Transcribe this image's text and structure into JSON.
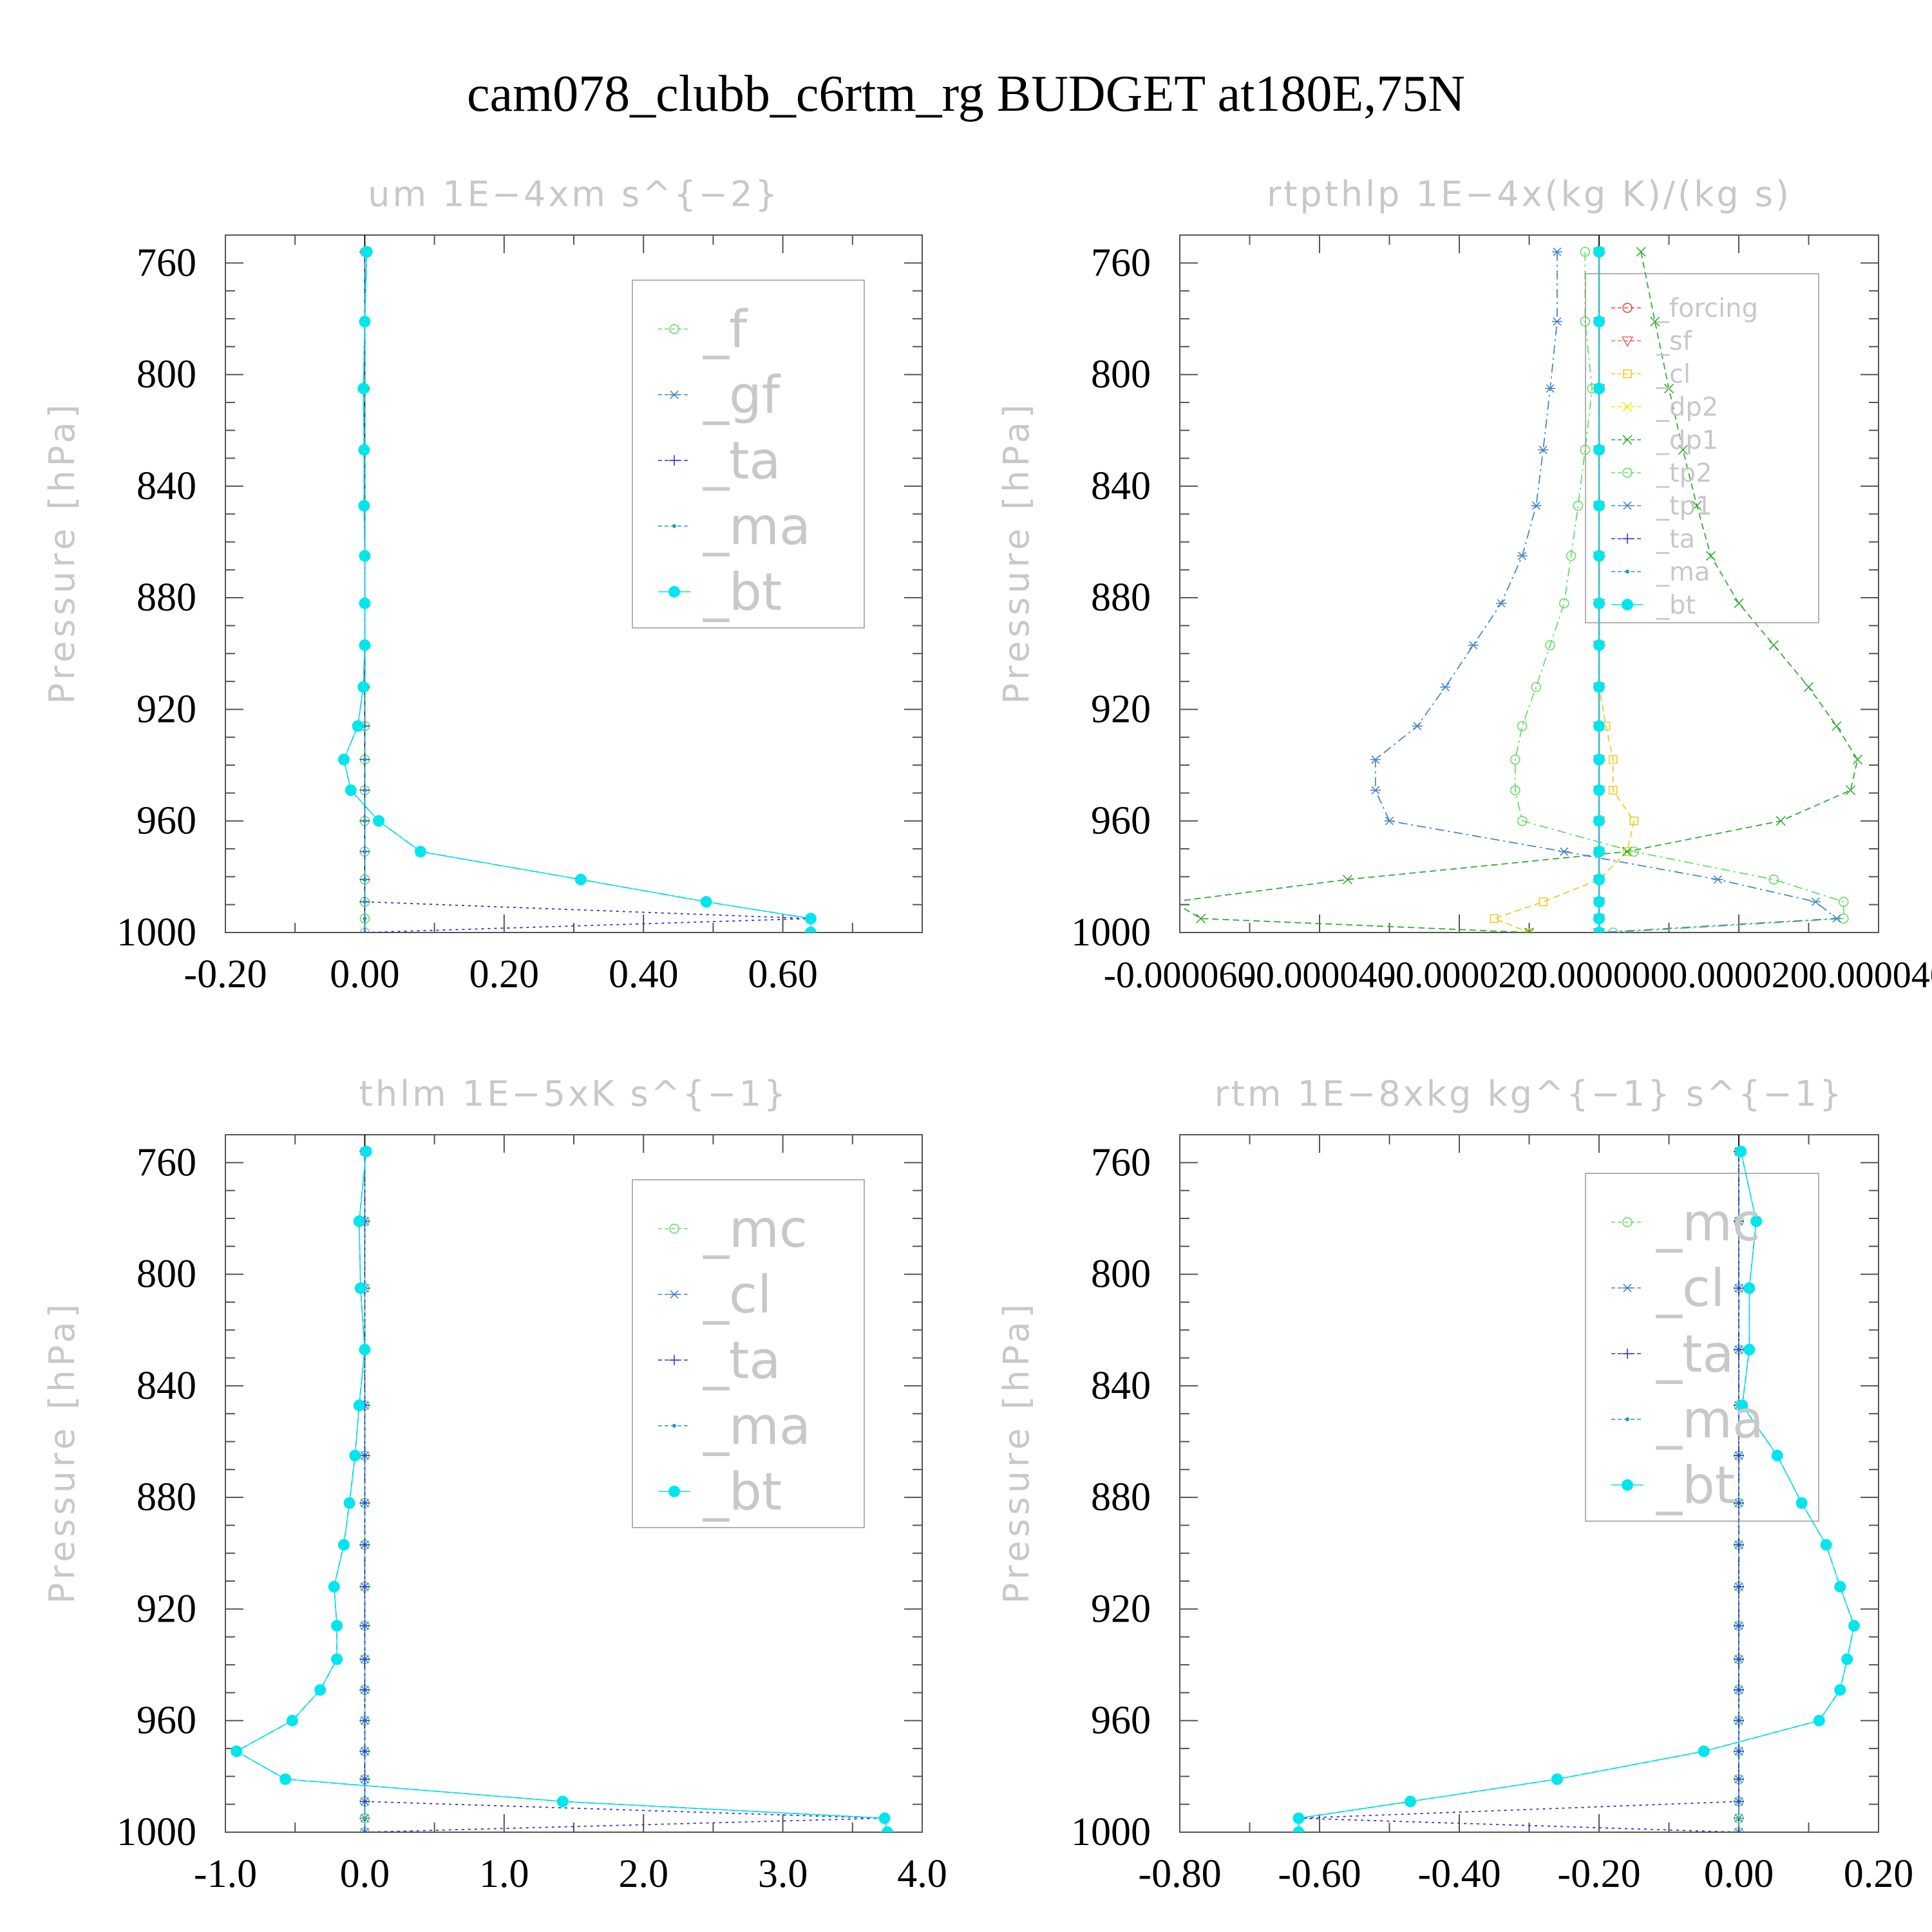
{
  "title": "cam078_clubb_c6rtm_rg  BUDGET at180E,75N",
  "chart_data": [
    {
      "type": "line",
      "title": "um   1E−4xm s^{−2}",
      "ylabel": "Pressure [hPa]",
      "ylim": [
        1000,
        750
      ],
      "xlim": [
        -0.2,
        0.8
      ],
      "yticks": [
        760,
        800,
        840,
        880,
        920,
        960,
        1000
      ],
      "xticks": [
        -0.2,
        0.0,
        0.2,
        0.4,
        0.6
      ],
      "xticklabels": [
        "-0.20",
        "0.00",
        "0.20",
        "0.40",
        "0.60"
      ],
      "pressure": [
        756,
        781,
        805,
        827,
        847,
        865,
        882,
        897,
        912,
        926,
        938,
        949,
        960,
        971,
        981,
        989,
        995,
        1000
      ],
      "legend_font": 80,
      "series": [
        {
          "name": "_f",
          "color": "#66dd66",
          "marker": "circle",
          "dash": "10,6",
          "values": [
            0,
            0,
            0,
            0,
            0,
            0,
            0,
            0,
            0,
            0,
            0,
            0,
            0,
            0,
            0,
            0,
            0,
            0
          ]
        },
        {
          "name": "_gf",
          "color": "#4488cc",
          "marker": "star",
          "dash": "14,6,3,6",
          "values": [
            0.003,
            0.0,
            -0.002,
            -0.001,
            -0.001,
            0.0,
            0.0,
            0.0,
            -0.002,
            -0.01,
            -0.03,
            -0.02,
            0.02,
            0.08,
            0.31,
            0.49,
            0.64,
            0.64
          ]
        },
        {
          "name": "_ta",
          "color": "#3333dd",
          "marker": "plus",
          "dash": "4,6",
          "values": [
            0,
            0,
            0,
            0,
            0,
            0,
            0,
            0,
            0,
            0,
            0,
            0,
            0,
            0,
            0,
            0,
            0.64,
            0
          ]
        },
        {
          "name": "_ma",
          "color": "#2299bb",
          "marker": "dot",
          "dash": "10,6",
          "values": [
            0,
            0,
            0,
            0,
            0,
            0,
            0,
            0,
            0,
            0,
            0,
            0,
            0,
            0,
            0,
            0,
            0,
            0
          ]
        },
        {
          "name": "_bt",
          "color": "#00e5ee",
          "marker": "bigdot",
          "dash": "none",
          "values": [
            0.003,
            0.0,
            -0.002,
            -0.001,
            -0.001,
            0.0,
            0.0,
            0.0,
            -0.002,
            -0.01,
            -0.03,
            -0.02,
            0.02,
            0.08,
            0.31,
            0.49,
            0.64,
            0.64
          ]
        }
      ]
    },
    {
      "type": "line",
      "title": "rtpthlp   1E−4x(kg K)/(kg s)",
      "ylabel": "Pressure [hPa]",
      "ylim": [
        1000,
        750
      ],
      "xlim": [
        -6e-05,
        4e-05
      ],
      "yticks": [
        760,
        800,
        840,
        880,
        920,
        960,
        1000
      ],
      "xticks": [
        -6e-05,
        -4e-05,
        -2e-05,
        0.0,
        2e-05,
        4e-05
      ],
      "xticklabels": [
        "-0.000060",
        "-0.000040",
        "-0.000020",
        "0.000000",
        "0.000020",
        "0.000040"
      ],
      "pressure": [
        756,
        781,
        805,
        827,
        847,
        865,
        882,
        897,
        912,
        926,
        938,
        949,
        960,
        971,
        981,
        989,
        995,
        1000
      ],
      "legend_font": 40,
      "series": [
        {
          "name": "_forcing",
          "color": "#ee4444",
          "marker": "circle",
          "dash": "10,6",
          "values": [
            0,
            0,
            0,
            0,
            0,
            0,
            0,
            0,
            0,
            0,
            0,
            0,
            0,
            0,
            0,
            0,
            0,
            0
          ]
        },
        {
          "name": "_sf",
          "color": "#ee6666",
          "marker": "tri",
          "dash": "4,6",
          "values": [
            0,
            0,
            0,
            0,
            0,
            0,
            0,
            0,
            0,
            0,
            0,
            0,
            0,
            0,
            0,
            0,
            0,
            0
          ]
        },
        {
          "name": "_cl",
          "color": "#eecc22",
          "marker": "square",
          "dash": "10,6",
          "values": [
            0,
            0,
            0,
            0,
            0,
            0,
            0,
            0,
            0,
            1e-06,
            2e-06,
            2e-06,
            5e-06,
            4e-06,
            0.0,
            -8e-06,
            -1.5e-05,
            -1e-05
          ]
        },
        {
          "name": "_dp2",
          "color": "#eeee00",
          "marker": "x",
          "dash": "4,6",
          "values": [
            0,
            0,
            0,
            0,
            0,
            0,
            0,
            0,
            0,
            0,
            0,
            0,
            0,
            0,
            0,
            0,
            0,
            0
          ]
        },
        {
          "name": "_dp1",
          "color": "#33aa33",
          "marker": "x",
          "dash": "10,6",
          "values": [
            6e-06,
            8e-06,
            1e-05,
            1.2e-05,
            1.4e-05,
            1.6e-05,
            2e-05,
            2.5e-05,
            3e-05,
            3.4e-05,
            3.7e-05,
            3.6e-05,
            2.6e-05,
            4e-06,
            -3.6e-05,
            -6.1e-05,
            -5.7e-05,
            -1e-05
          ]
        },
        {
          "name": "_tp2",
          "color": "#66dd66",
          "marker": "circle",
          "dash": "14,6,3,6",
          "values": [
            -2e-06,
            -2e-06,
            -1e-06,
            -2e-06,
            -3e-06,
            -4e-06,
            -5e-06,
            -7e-06,
            -9e-06,
            -1.1e-05,
            -1.2e-05,
            -1.2e-05,
            -1.1e-05,
            5e-06,
            2.5e-05,
            3.5e-05,
            3.5e-05,
            2e-06
          ]
        },
        {
          "name": "_tp1",
          "color": "#4488cc",
          "marker": "star",
          "dash": "14,6,3,6",
          "values": [
            -6e-06,
            -6e-06,
            -7e-06,
            -8e-06,
            -9e-06,
            -1.1e-05,
            -1.4e-05,
            -1.8e-05,
            -2.2e-05,
            -2.6e-05,
            -3.2e-05,
            -3.2e-05,
            -3e-05,
            -5e-06,
            1.7e-05,
            3.1e-05,
            3.4e-05,
            0.0
          ]
        },
        {
          "name": "_ta",
          "color": "#3333dd",
          "marker": "plus",
          "dash": "4,6",
          "values": [
            0,
            0,
            0,
            0,
            0,
            0,
            0,
            0,
            0,
            0,
            0,
            0,
            0,
            0,
            0,
            0,
            0,
            0
          ]
        },
        {
          "name": "_ma",
          "color": "#2299bb",
          "marker": "dot",
          "dash": "10,6",
          "values": [
            0,
            0,
            0,
            0,
            0,
            0,
            0,
            0,
            0,
            0,
            0,
            0,
            0,
            0,
            0,
            0,
            0,
            0
          ]
        },
        {
          "name": "_bt",
          "color": "#00e5ee",
          "marker": "bigdot",
          "dash": "none",
          "values": [
            0,
            0,
            0,
            0,
            0,
            0,
            0,
            0,
            0,
            0,
            0,
            0,
            0,
            0,
            0,
            0,
            0,
            0
          ]
        }
      ]
    },
    {
      "type": "line",
      "title": "thlm   1E−5xK s^{−1}",
      "ylabel": "Pressure [hPa]",
      "ylim": [
        1000,
        750
      ],
      "xlim": [
        -1.0,
        4.0
      ],
      "yticks": [
        760,
        800,
        840,
        880,
        920,
        960,
        1000
      ],
      "xticks": [
        -1.0,
        0.0,
        1.0,
        2.0,
        3.0,
        4.0
      ],
      "xticklabels": [
        "-1.0",
        "0.0",
        "1.0",
        "2.0",
        "3.0",
        "4.0"
      ],
      "pressure": [
        756,
        781,
        805,
        827,
        847,
        865,
        882,
        897,
        912,
        926,
        938,
        949,
        960,
        971,
        981,
        989,
        995,
        1000
      ],
      "legend_font": 80,
      "series": [
        {
          "name": "_mc",
          "color": "#66dd66",
          "marker": "circle",
          "dash": "10,6",
          "values": [
            0,
            0,
            0,
            0,
            0,
            0,
            0,
            0,
            0,
            0,
            0,
            0,
            0,
            0,
            0,
            0,
            0,
            0
          ]
        },
        {
          "name": "_cl",
          "color": "#4488cc",
          "marker": "star",
          "dash": "14,6,3,6",
          "values": [
            0,
            0,
            0,
            0,
            0,
            0,
            0,
            0,
            0,
            0,
            0,
            0,
            0,
            0,
            0,
            0,
            0,
            0
          ]
        },
        {
          "name": "_ta",
          "color": "#3333dd",
          "marker": "plus",
          "dash": "4,6",
          "values": [
            0,
            0,
            0,
            0,
            0,
            0,
            0,
            0,
            0,
            0,
            0,
            0,
            0,
            0,
            0,
            0,
            3.73,
            0
          ]
        },
        {
          "name": "_ma",
          "color": "#2299bb",
          "marker": "dot",
          "dash": "10,6",
          "values": [
            0.01,
            -0.04,
            -0.03,
            0.0,
            -0.04,
            -0.07,
            -0.11,
            -0.15,
            -0.22,
            -0.2,
            -0.2,
            -0.32,
            -0.52,
            -0.92,
            -0.57,
            1.42,
            3.73,
            3.75
          ]
        },
        {
          "name": "_bt",
          "color": "#00e5ee",
          "marker": "bigdot",
          "dash": "none",
          "values": [
            0.01,
            -0.04,
            -0.03,
            0.0,
            -0.04,
            -0.07,
            -0.11,
            -0.15,
            -0.22,
            -0.2,
            -0.2,
            -0.32,
            -0.52,
            -0.92,
            -0.57,
            1.42,
            3.73,
            3.75
          ]
        }
      ]
    },
    {
      "type": "line",
      "title": "rtm   1E−8xkg kg^{−1} s^{−1}",
      "ylabel": "Pressure [hPa]",
      "ylim": [
        1000,
        750
      ],
      "xlim": [
        -0.8,
        0.2
      ],
      "yticks": [
        760,
        800,
        840,
        880,
        920,
        960,
        1000
      ],
      "xticks": [
        -0.8,
        -0.6,
        -0.4,
        -0.2,
        0.0,
        0.2
      ],
      "xticklabels": [
        "-0.80",
        "-0.60",
        "-0.40",
        "-0.20",
        "0.00",
        "0.20"
      ],
      "pressure": [
        756,
        781,
        805,
        827,
        847,
        865,
        882,
        897,
        912,
        926,
        938,
        949,
        960,
        971,
        981,
        989,
        995,
        1000
      ],
      "legend_font": 80,
      "series": [
        {
          "name": "_mc",
          "color": "#66dd66",
          "marker": "circle",
          "dash": "10,6",
          "values": [
            0,
            0,
            0,
            0,
            0,
            0,
            0,
            0,
            0,
            0,
            0,
            0,
            0,
            0,
            0,
            0,
            0,
            0
          ]
        },
        {
          "name": "_cl",
          "color": "#4488cc",
          "marker": "star",
          "dash": "14,6,3,6",
          "values": [
            0,
            0,
            0,
            0,
            0,
            0,
            0,
            0,
            0,
            0,
            0,
            0,
            0,
            0,
            0,
            0,
            0,
            0
          ]
        },
        {
          "name": "_ta",
          "color": "#3333dd",
          "marker": "plus",
          "dash": "4,6",
          "values": [
            0,
            0,
            0,
            0,
            0,
            0,
            0,
            0,
            0,
            0,
            0,
            0,
            0,
            0,
            0,
            0,
            -0.63,
            0
          ]
        },
        {
          "name": "_ma",
          "color": "#2299bb",
          "marker": "dot",
          "dash": "10,6",
          "values": [
            0.003,
            0.025,
            0.015,
            0.015,
            0.005,
            0.055,
            0.09,
            0.125,
            0.145,
            0.165,
            0.155,
            0.145,
            0.115,
            -0.05,
            -0.26,
            -0.47,
            -0.63,
            -0.63
          ]
        },
        {
          "name": "_bt",
          "color": "#00e5ee",
          "marker": "bigdot",
          "dash": "none",
          "values": [
            0.003,
            0.025,
            0.015,
            0.015,
            0.005,
            0.055,
            0.09,
            0.125,
            0.145,
            0.165,
            0.155,
            0.145,
            0.115,
            -0.05,
            -0.26,
            -0.47,
            -0.63,
            -0.63
          ]
        }
      ]
    }
  ]
}
